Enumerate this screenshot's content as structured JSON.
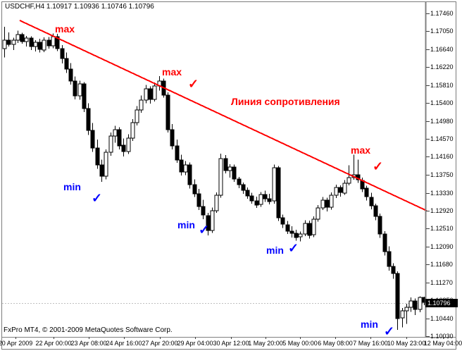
{
  "window": {
    "title": "USDCHF,H4 1.10917 1.10936 1.10746 1.10796",
    "copyright": "FxPro MT4, © 2001-2009 MetaQuotes Software Corp."
  },
  "colors": {
    "background": "#ffffff",
    "up_body": "#ffffff",
    "down_body": "#000000",
    "outline": "#000000",
    "trendline": "#ff0000",
    "max_label": "#ff0000",
    "min_label": "#0000ff",
    "red_check": "#ff0000",
    "blue_check": "#0000ff",
    "axis_line": "#808080",
    "tick_mark": "#404040",
    "current_price_line": "#c0c0c0",
    "badge_bg": "#000000",
    "badge_text": "#ffffff"
  },
  "chart_data": {
    "type": "candlestick",
    "symbol": "USDCHF",
    "timeframe": "H4",
    "current_bar": {
      "open": "1.10917",
      "high": "1.10936",
      "low": "1.10746",
      "close": "1.10796"
    },
    "current_price": "1.10796",
    "ylim": [
      1.1003,
      1.1746
    ],
    "grid": false,
    "y_ticks": [
      "1.17460",
      "1.17050",
      "1.16640",
      "1.16220",
      "1.15810",
      "1.15400",
      "1.14980",
      "1.14570",
      "1.14160",
      "1.13750",
      "1.13330",
      "1.12920",
      "1.12510",
      "1.12090",
      "1.11680",
      "1.11270",
      "1.10850",
      "1.10440",
      "1.10030"
    ],
    "x_ticks": [
      {
        "label": "20 Apr 2009",
        "x": 22
      },
      {
        "label": "22 Apr 00:00",
        "x": 76
      },
      {
        "label": "23 Apr 08:00",
        "x": 126
      },
      {
        "label": "24 Apr 16:00",
        "x": 176
      },
      {
        "label": "27 Apr 20:00",
        "x": 227
      },
      {
        "label": "29 Apr 04:00",
        "x": 277
      },
      {
        "label": "30 Apr 12:00",
        "x": 328
      },
      {
        "label": "1 May 20:00",
        "x": 377
      },
      {
        "label": "5 May 00:00",
        "x": 426
      },
      {
        "label": "6 May 08:00",
        "x": 476
      },
      {
        "label": "7 May 16:00",
        "x": 526
      },
      {
        "label": "10 May 23:00",
        "x": 577
      },
      {
        "label": "12 May 04:00",
        "x": 629
      }
    ],
    "trendline": {
      "label": "Линия сопротивления",
      "x1": 28,
      "y1": 29,
      "x2": 606,
      "y2": 299
    },
    "annotations": {
      "labels": [
        {
          "text": "max",
          "kind": "max",
          "x": 78,
          "y": 33
        },
        {
          "text": "max",
          "kind": "max",
          "x": 230,
          "y": 94
        },
        {
          "text": "max",
          "kind": "max",
          "x": 498,
          "y": 205
        },
        {
          "text": "min",
          "kind": "min",
          "x": 90,
          "y": 257
        },
        {
          "text": "min",
          "kind": "min",
          "x": 252,
          "y": 311
        },
        {
          "text": "min",
          "kind": "min",
          "x": 378,
          "y": 347
        },
        {
          "text": "min",
          "kind": "min",
          "x": 512,
          "y": 452
        },
        {
          "text": "Линия сопротивления",
          "kind": "resistance",
          "x": 328,
          "y": 136
        }
      ],
      "checks": [
        {
          "glyph": "✓",
          "color": "red",
          "x": 267,
          "y": 111
        },
        {
          "glyph": "✓",
          "color": "red",
          "x": 529,
          "y": 228
        },
        {
          "glyph": "✓",
          "color": "blue",
          "x": 130,
          "y": 273
        },
        {
          "glyph": "✓",
          "color": "blue",
          "x": 282,
          "y": 318
        },
        {
          "glyph": "✓",
          "color": "blue",
          "x": 409,
          "y": 344
        },
        {
          "glyph": "✓",
          "color": "blue",
          "x": 545,
          "y": 462
        }
      ]
    },
    "candles": [
      [
        1.1666,
        1.1715,
        1.1645,
        1.1685
      ],
      [
        1.1685,
        1.1702,
        1.167,
        1.1676
      ],
      [
        1.1676,
        1.169,
        1.1662,
        1.1685
      ],
      [
        1.1685,
        1.1706,
        1.1678,
        1.1698
      ],
      [
        1.1698,
        1.1701,
        1.1676,
        1.1681
      ],
      [
        1.1681,
        1.1694,
        1.167,
        1.1689
      ],
      [
        1.1689,
        1.1693,
        1.1662,
        1.1669
      ],
      [
        1.1669,
        1.1684,
        1.1658,
        1.1679
      ],
      [
        1.1679,
        1.1688,
        1.1656,
        1.1662
      ],
      [
        1.1662,
        1.1691,
        1.1657,
        1.1685
      ],
      [
        1.1685,
        1.1692,
        1.1665,
        1.1672
      ],
      [
        1.1672,
        1.17,
        1.1666,
        1.1693
      ],
      [
        1.1693,
        1.1699,
        1.1659,
        1.1665
      ],
      [
        1.1665,
        1.1673,
        1.1631,
        1.1642
      ],
      [
        1.1642,
        1.1656,
        1.1609,
        1.1618
      ],
      [
        1.1618,
        1.1632,
        1.1582,
        1.159
      ],
      [
        1.159,
        1.1601,
        1.1548,
        1.1556
      ],
      [
        1.1556,
        1.1591,
        1.1547,
        1.1584
      ],
      [
        1.1584,
        1.1588,
        1.1519,
        1.1527
      ],
      [
        1.1527,
        1.1539,
        1.1466,
        1.1476
      ],
      [
        1.1476,
        1.1494,
        1.1427,
        1.1436
      ],
      [
        1.1436,
        1.1456,
        1.1388,
        1.1397
      ],
      [
        1.1397,
        1.1409,
        1.1358,
        1.1371
      ],
      [
        1.1371,
        1.1433,
        1.1364,
        1.1426
      ],
      [
        1.1426,
        1.1472,
        1.1418,
        1.1464
      ],
      [
        1.1464,
        1.1487,
        1.1448,
        1.1479
      ],
      [
        1.1479,
        1.1484,
        1.1433,
        1.1442
      ],
      [
        1.1442,
        1.1458,
        1.1417,
        1.1428
      ],
      [
        1.1428,
        1.1468,
        1.1422,
        1.1459
      ],
      [
        1.1459,
        1.1503,
        1.1452,
        1.1494
      ],
      [
        1.1494,
        1.1533,
        1.1488,
        1.1524
      ],
      [
        1.1524,
        1.1557,
        1.1517,
        1.1546
      ],
      [
        1.1546,
        1.1581,
        1.1539,
        1.1572
      ],
      [
        1.1572,
        1.1578,
        1.1538,
        1.1548
      ],
      [
        1.1548,
        1.1587,
        1.1543,
        1.1579
      ],
      [
        1.1579,
        1.1602,
        1.1568,
        1.159
      ],
      [
        1.159,
        1.1596,
        1.1552,
        1.1558
      ],
      [
        1.1558,
        1.1564,
        1.1472,
        1.1479
      ],
      [
        1.1479,
        1.1491,
        1.1433,
        1.1441
      ],
      [
        1.1441,
        1.1456,
        1.1402,
        1.1409
      ],
      [
        1.1409,
        1.1421,
        1.1373,
        1.1381
      ],
      [
        1.1381,
        1.1406,
        1.1374,
        1.1398
      ],
      [
        1.1398,
        1.1403,
        1.1343,
        1.1352
      ],
      [
        1.1352,
        1.1364,
        1.1323,
        1.1331
      ],
      [
        1.1331,
        1.1342,
        1.1293,
        1.1301
      ],
      [
        1.1301,
        1.1317,
        1.1272,
        1.1281
      ],
      [
        1.1281,
        1.1287,
        1.1235,
        1.1247
      ],
      [
        1.1247,
        1.1299,
        1.1241,
        1.1292
      ],
      [
        1.1292,
        1.1334,
        1.1287,
        1.1327
      ],
      [
        1.1327,
        1.1423,
        1.1322,
        1.1412
      ],
      [
        1.1412,
        1.142,
        1.1378,
        1.1385
      ],
      [
        1.1385,
        1.1399,
        1.1368,
        1.1393
      ],
      [
        1.1393,
        1.1398,
        1.1358,
        1.1365
      ],
      [
        1.1365,
        1.137,
        1.1344,
        1.1352
      ],
      [
        1.1352,
        1.1357,
        1.1331,
        1.1339
      ],
      [
        1.1339,
        1.1345,
        1.1319,
        1.1326
      ],
      [
        1.1326,
        1.1333,
        1.1308,
        1.1315
      ],
      [
        1.1315,
        1.1324,
        1.1298,
        1.1306
      ],
      [
        1.1306,
        1.1335,
        1.1301,
        1.1329
      ],
      [
        1.1329,
        1.1338,
        1.1312,
        1.132
      ],
      [
        1.132,
        1.1331,
        1.1306,
        1.1313
      ],
      [
        1.1313,
        1.1398,
        1.1308,
        1.139
      ],
      [
        1.139,
        1.1395,
        1.1268,
        1.1275
      ],
      [
        1.1275,
        1.1283,
        1.1252,
        1.126
      ],
      [
        1.126,
        1.1268,
        1.1238,
        1.1245
      ],
      [
        1.1245,
        1.1256,
        1.123,
        1.124
      ],
      [
        1.124,
        1.1248,
        1.1223,
        1.1231
      ],
      [
        1.1231,
        1.1244,
        1.1221,
        1.1238
      ],
      [
        1.1238,
        1.127,
        1.1233,
        1.1263
      ],
      [
        1.1263,
        1.1269,
        1.1228,
        1.1236
      ],
      [
        1.1236,
        1.1279,
        1.1231,
        1.1272
      ],
      [
        1.1272,
        1.1305,
        1.1267,
        1.1298
      ],
      [
        1.1298,
        1.1323,
        1.1293,
        1.1316
      ],
      [
        1.1316,
        1.1322,
        1.129,
        1.1299
      ],
      [
        1.1299,
        1.1334,
        1.1294,
        1.1327
      ],
      [
        1.1327,
        1.1352,
        1.1321,
        1.1345
      ],
      [
        1.1345,
        1.135,
        1.1324,
        1.1333
      ],
      [
        1.1333,
        1.1362,
        1.1328,
        1.1355
      ],
      [
        1.1355,
        1.1396,
        1.135,
        1.1368
      ],
      [
        1.1368,
        1.1421,
        1.1363,
        1.1374
      ],
      [
        1.1374,
        1.1409,
        1.1356,
        1.1362
      ],
      [
        1.1362,
        1.1368,
        1.1335,
        1.1343
      ],
      [
        1.1343,
        1.1349,
        1.1315,
        1.1323
      ],
      [
        1.1323,
        1.1333,
        1.1295,
        1.1303
      ],
      [
        1.1303,
        1.1308,
        1.127,
        1.1279
      ],
      [
        1.1279,
        1.1285,
        1.1229,
        1.1239
      ],
      [
        1.1239,
        1.1245,
        1.1189,
        1.1198
      ],
      [
        1.1198,
        1.121,
        1.1154,
        1.1164
      ],
      [
        1.1164,
        1.1171,
        1.1135,
        1.1148
      ],
      [
        1.1148,
        1.1152,
        1.1018,
        1.1044
      ],
      [
        1.1044,
        1.1068,
        1.1023,
        1.1061
      ],
      [
        1.1061,
        1.1078,
        1.1031,
        1.1069
      ],
      [
        1.1069,
        1.1092,
        1.1059,
        1.1084
      ],
      [
        1.1084,
        1.109,
        1.1052,
        1.1064
      ],
      [
        1.1064,
        1.1095,
        1.1058,
        1.10917
      ],
      [
        1.10917,
        1.10936,
        1.10746,
        1.10796
      ]
    ]
  }
}
